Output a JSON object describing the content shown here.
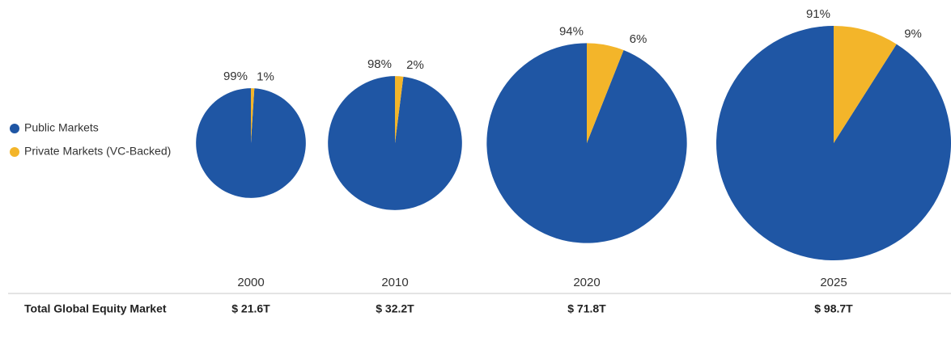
{
  "chart_data": {
    "type": "pie",
    "categories": [
      "2000",
      "2010",
      "2020",
      "2025"
    ],
    "series": [
      {
        "name": "Public Markets",
        "color": "#1f56a4",
        "values": [
          99,
          98,
          94,
          91
        ],
        "value_labels": [
          "99%",
          "98%",
          "94%",
          "91%"
        ]
      },
      {
        "name": "Private Markets (VC-Backed)",
        "color": "#f3b52a",
        "values": [
          1,
          2,
          6,
          9
        ],
        "value_labels": [
          "1%",
          "2%",
          "6%",
          "9%"
        ]
      }
    ],
    "total_title": "Total Global Equity Market",
    "totals": [
      21.6,
      32.2,
      71.8,
      98.7
    ],
    "total_labels": [
      "$ 21.6T",
      "$ 32.2T",
      "$ 71.8T",
      "$ 98.7T"
    ]
  }
}
